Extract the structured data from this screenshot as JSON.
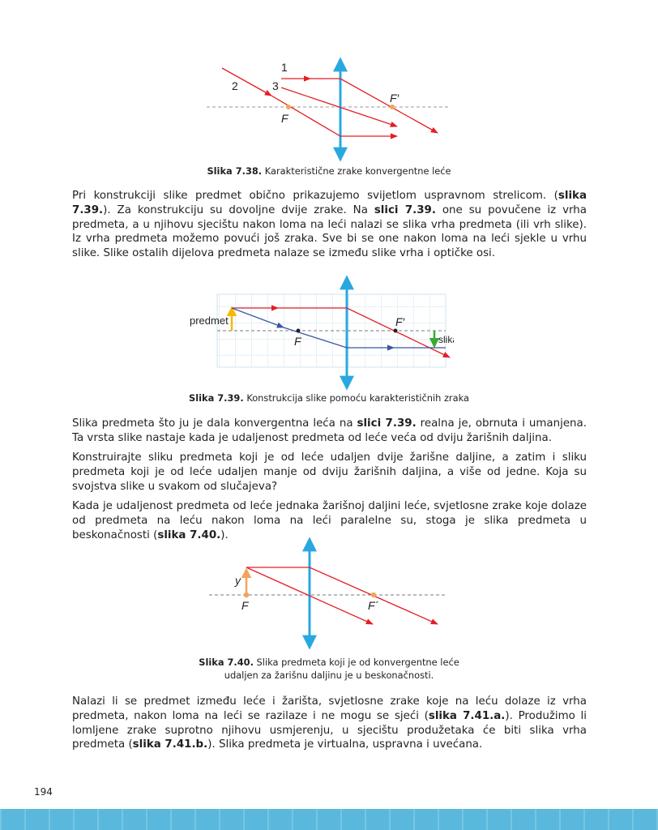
{
  "fig738": {
    "labels": {
      "ray1": "1",
      "ray2": "2",
      "ray3": "3",
      "F": "F",
      "Fprime": "F′"
    },
    "caption_num": "Slika 7.38.",
    "caption_text": "Karakteristične zrake konvergentne leće"
  },
  "para1": {
    "p1": "Pri konstrukciji slike predmet obično prikazujemo svijetlom uspravnom strelicom. (",
    "b1": "slika 7.39.",
    "p2": "). Za konstrukciju su dovoljne dvije zrake. Na ",
    "b2": "slici 7.39.",
    "p3": " one su povučene iz vrha predmeta, a u njihovu sjecištu nakon loma na leći nalazi se slika vrha predmeta (ili vrh slike). Iz vrha predmeta možemo povući još zraka. Sve bi se one nakon loma na leći sjekle u vrhu slike. Slike ostalih dijelova predmeta nalaze se između slike vrha i optičke osi."
  },
  "fig739": {
    "labels": {
      "object": "predmet",
      "image": "slika",
      "F": "F",
      "Fprime": "F′"
    },
    "caption_num": "Slika 7.39.",
    "caption_text": "Konstrukcija slike pomoću karakterističnih zraka"
  },
  "para2": {
    "p1": "Slika predmeta što ju je dala konvergentna leća na ",
    "b1": "slici 7.39.",
    "p2": " realna je, obrnuta i umanjena. Ta vrsta slike nastaje kada je udaljenost predmeta od leće veća od dviju žarišnih daljina."
  },
  "para3": {
    "text": "Konstruirajte sliku predmeta koji je od leće udaljen dvije žarišne daljine, a zatim i sliku predmeta koji je od leće udaljen manje od dviju žarišnih daljina, a više od jedne. Koja su svojstva slike u svakom od slučajeva?"
  },
  "para4": {
    "p1": "Kada je udaljenost predmeta od leće jednaka žarišnoj daljini leće, svjetlosne zrake koje dolaze od predmeta na leću nakon loma na leći paralelne su, stoga je slika predmeta u beskonačnosti (",
    "b1": "slika 7.40.",
    "p2": ")."
  },
  "fig740": {
    "labels": {
      "y": "y",
      "F": "F",
      "Fprime": "F´"
    },
    "caption_num": "Slika 7.40.",
    "caption_line1": "Slika predmeta koji je od konvergentne leće",
    "caption_line2": "udaljen za žarišnu daljinu je u beskonačnosti."
  },
  "para5": {
    "p1": "Nalazi li se predmet između leće i žarišta, svjetlosne zrake koje na leću dolaze iz vrha predmeta, nakon loma na leći se razilaze i ne mogu se sjeći (",
    "b1": "slika 7.41.a.",
    "p2": "). Produžimo li lomljene zrake suprotno njihovu usmjerenju, u sjecištu produžetaka će biti slika vrha predmeta (",
    "b2": "slika 7.41.b.",
    "p3": "). Slika predmeta je virtualna, uspravna i uvećana."
  },
  "page_number": "194",
  "colors": {
    "lens": "#29a8e0",
    "ray_red": "#e31e24",
    "ray_blue": "#3a55a4",
    "focus_orange": "#f4a35a",
    "object_yellow": "#f5b800",
    "image_green": "#3aaa35",
    "grid": "#cfe3f2",
    "band": "#5ab8dc"
  }
}
